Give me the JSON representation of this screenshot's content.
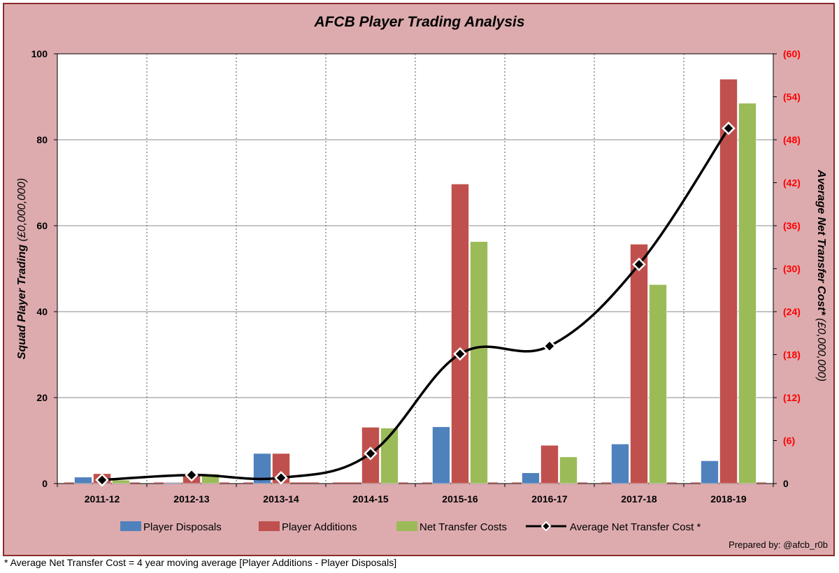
{
  "chart_data": {
    "type": "bar",
    "title": "AFCB Player Trading Analysis",
    "categories": [
      "2011-12",
      "2012-13",
      "2013-14",
      "2014-15",
      "2015-16",
      "2016-17",
      "2017-18",
      "2018-19"
    ],
    "series": [
      {
        "name": "Player Disposals",
        "type": "bar",
        "axis": "left",
        "color": "#4f81bd",
        "values": [
          1.5,
          0.2,
          7.0,
          0.0,
          13.2,
          2.5,
          9.2,
          5.3
        ]
      },
      {
        "name": "Player Additions",
        "type": "bar",
        "axis": "left",
        "color": "#c0504d",
        "values": [
          2.3,
          2.1,
          7.0,
          13.1,
          69.7,
          8.9,
          55.7,
          94.1
        ]
      },
      {
        "name": "Net Transfer Costs",
        "type": "bar",
        "axis": "left",
        "color": "#9bbb59",
        "values": [
          0.8,
          2.2,
          0.0,
          12.9,
          56.3,
          6.2,
          46.3,
          88.5
        ]
      },
      {
        "name": "Average Net Transfer Cost *",
        "type": "line",
        "axis": "right",
        "color": "#000000",
        "values": [
          0.5,
          1.2,
          0.8,
          4.2,
          18.1,
          19.2,
          30.6,
          49.6
        ]
      }
    ],
    "y_left": {
      "label": "Squad Player Trading",
      "unit": "(£0,000,000)",
      "range": [
        0,
        100
      ],
      "ticks": [
        "0",
        "20",
        "40",
        "60",
        "80",
        "100"
      ]
    },
    "y_right": {
      "label": "Average Net Transfer Cost*",
      "unit": "(£0,000,000)",
      "range": [
        0,
        60
      ],
      "ticks": [
        "0",
        "(6)",
        "(12)",
        "(18)",
        "(24)",
        "(30)",
        "(36)",
        "(42)",
        "(48)",
        "(54)",
        "(60)"
      ],
      "tick_color": "#ff0000"
    },
    "grid": {
      "horizontal": true,
      "vertical_dotted": true
    },
    "legend": {
      "position": "bottom"
    },
    "credit": "Prepared by: @afcb_r0b"
  },
  "footnote": "* Average Net Transfer Cost = 4 year moving average [Player Additions - Player Disposals]"
}
